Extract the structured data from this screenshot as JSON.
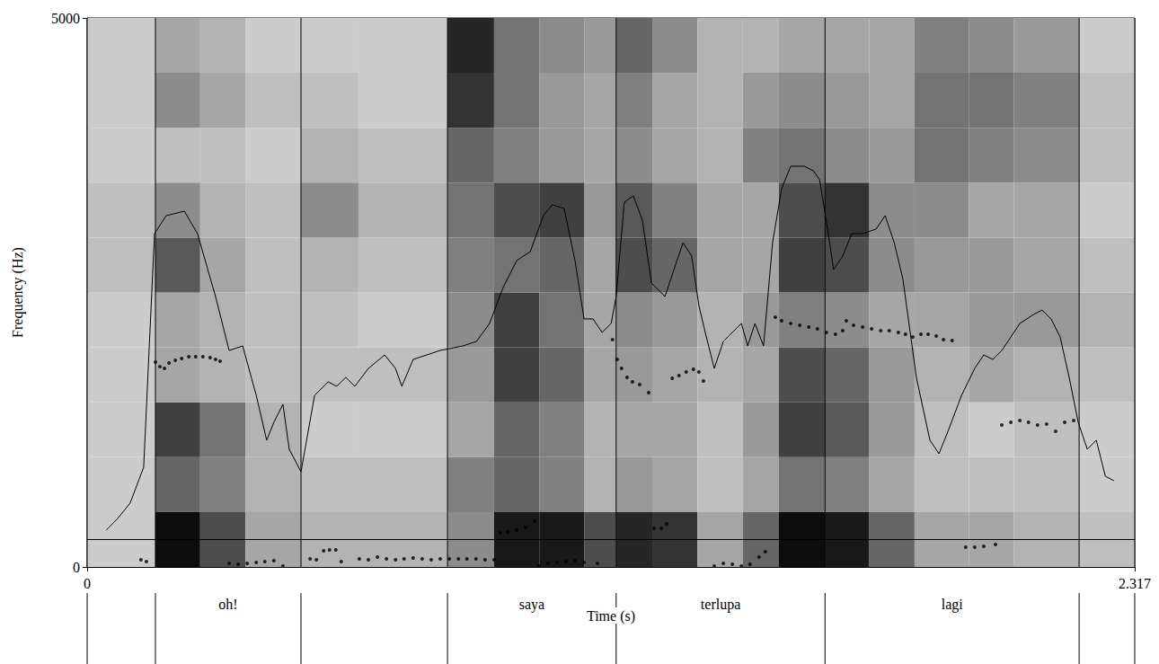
{
  "chart_data": {
    "type": "spectrogram",
    "x_label": "Time (s)",
    "y_label": "Frequency (Hz)",
    "xlim": [
      0,
      2.317
    ],
    "ylim": [
      0,
      5000
    ],
    "xticks": [
      0,
      2.317
    ],
    "yticks": [
      0,
      5000
    ],
    "grid": false,
    "color": "#000000",
    "spectrogram": {
      "time_edges": [
        0,
        0.151,
        0.25,
        0.35,
        0.473,
        0.6,
        0.797,
        0.9,
        1.0,
        1.1,
        1.17,
        1.25,
        1.35,
        1.45,
        1.53,
        1.632,
        1.73,
        1.83,
        1.95,
        2.05,
        2.194,
        2.317
      ],
      "freq_edges": [
        0,
        500,
        1000,
        1500,
        2000,
        2500,
        3000,
        3500,
        4000,
        4500,
        5000
      ],
      "darkness": [
        [
          0.2,
          0.2,
          0.2,
          0.2,
          0.2,
          0.25,
          0.25,
          0.2,
          0.2,
          0.2
        ],
        [
          0.95,
          0.6,
          0.75,
          0.35,
          0.35,
          0.65,
          0.45,
          0.25,
          0.45,
          0.35
        ],
        [
          0.7,
          0.5,
          0.55,
          0.3,
          0.3,
          0.35,
          0.3,
          0.25,
          0.35,
          0.3
        ],
        [
          0.35,
          0.3,
          0.3,
          0.25,
          0.25,
          0.25,
          0.25,
          0.2,
          0.25,
          0.2
        ],
        [
          0.3,
          0.25,
          0.2,
          0.25,
          0.25,
          0.3,
          0.45,
          0.3,
          0.25,
          0.2
        ],
        [
          0.3,
          0.25,
          0.2,
          0.25,
          0.2,
          0.25,
          0.3,
          0.25,
          0.2,
          0.2
        ],
        [
          0.45,
          0.5,
          0.35,
          0.4,
          0.45,
          0.5,
          0.55,
          0.6,
          0.8,
          0.85
        ],
        [
          0.9,
          0.6,
          0.6,
          0.75,
          0.75,
          0.55,
          0.7,
          0.5,
          0.55,
          0.55
        ],
        [
          0.9,
          0.5,
          0.5,
          0.6,
          0.55,
          0.6,
          0.75,
          0.4,
          0.4,
          0.45
        ],
        [
          0.7,
          0.3,
          0.3,
          0.35,
          0.35,
          0.35,
          0.4,
          0.35,
          0.35,
          0.4
        ],
        [
          0.85,
          0.4,
          0.35,
          0.4,
          0.45,
          0.7,
          0.65,
          0.45,
          0.5,
          0.6
        ],
        [
          0.8,
          0.35,
          0.35,
          0.35,
          0.4,
          0.6,
          0.5,
          0.35,
          0.35,
          0.45
        ],
        [
          0.35,
          0.25,
          0.25,
          0.3,
          0.3,
          0.35,
          0.35,
          0.3,
          0.3,
          0.3
        ],
        [
          0.6,
          0.35,
          0.4,
          0.35,
          0.4,
          0.35,
          0.35,
          0.5,
          0.4,
          0.3
        ],
        [
          0.95,
          0.55,
          0.75,
          0.7,
          0.5,
          0.75,
          0.7,
          0.55,
          0.45,
          0.35
        ],
        [
          0.9,
          0.5,
          0.65,
          0.6,
          0.45,
          0.7,
          0.8,
          0.45,
          0.4,
          0.35
        ],
        [
          0.6,
          0.35,
          0.4,
          0.4,
          0.35,
          0.45,
          0.45,
          0.4,
          0.35,
          0.35
        ],
        [
          0.35,
          0.25,
          0.25,
          0.3,
          0.35,
          0.4,
          0.45,
          0.55,
          0.55,
          0.5
        ],
        [
          0.35,
          0.25,
          0.2,
          0.35,
          0.4,
          0.4,
          0.35,
          0.5,
          0.55,
          0.45
        ],
        [
          0.3,
          0.25,
          0.25,
          0.3,
          0.4,
          0.35,
          0.35,
          0.45,
          0.5,
          0.4
        ],
        [
          0.25,
          0.2,
          0.2,
          0.25,
          0.3,
          0.25,
          0.2,
          0.25,
          0.25,
          0.2
        ]
      ]
    },
    "intensity_curve": {
      "x": [
        0.042,
        0.066,
        0.095,
        0.125,
        0.149,
        0.175,
        0.215,
        0.244,
        0.284,
        0.314,
        0.344,
        0.374,
        0.397,
        0.413,
        0.433,
        0.447,
        0.473,
        0.503,
        0.533,
        0.552,
        0.572,
        0.592,
        0.622,
        0.658,
        0.682,
        0.696,
        0.721,
        0.751,
        0.781,
        0.801,
        0.831,
        0.861,
        0.89,
        0.92,
        0.95,
        0.98,
        1.009,
        1.029,
        1.055,
        1.079,
        1.099,
        1.119,
        1.139,
        1.159,
        1.17,
        1.188,
        1.208,
        1.228,
        1.248,
        1.278,
        1.298,
        1.318,
        1.337,
        1.353,
        1.367,
        1.387,
        1.407,
        1.427,
        1.447,
        1.461,
        1.477,
        1.496,
        1.516,
        1.536,
        1.556,
        1.586,
        1.606,
        1.62,
        1.636,
        1.651,
        1.671,
        1.691,
        1.715,
        1.745,
        1.765,
        1.785,
        1.804,
        1.834,
        1.864,
        1.884,
        1.904,
        1.934,
        1.963,
        1.983,
        2.003,
        2.023,
        2.043,
        2.063,
        2.093,
        2.112,
        2.132,
        2.152,
        2.172,
        2.192,
        2.212,
        2.232,
        2.252,
        2.271
      ],
      "y": [
        335,
        434,
        581,
        908,
        3036,
        3200,
        3240,
        3036,
        2463,
        1972,
        2013,
        1563,
        1154,
        1317,
        1481,
        1072,
        867,
        1563,
        1686,
        1645,
        1727,
        1645,
        1808,
        1931,
        1808,
        1645,
        1890,
        1931,
        1972,
        1988,
        2013,
        2054,
        2218,
        2545,
        2790,
        2872,
        3200,
        3298,
        3265,
        2790,
        2259,
        2259,
        2136,
        2218,
        2463,
        3322,
        3380,
        3159,
        2586,
        2463,
        2709,
        2954,
        2831,
        2381,
        2136,
        1808,
        2054,
        2136,
        2218,
        2013,
        2218,
        2013,
        2954,
        3445,
        3650,
        3650,
        3609,
        3527,
        3118,
        2709,
        2831,
        3036,
        3036,
        3077,
        3200,
        2954,
        2627,
        1727,
        1154,
        1031,
        1236,
        1563,
        1808,
        1931,
        1890,
        1972,
        2095,
        2218,
        2299,
        2340,
        2259,
        2095,
        1727,
        1317,
        1072,
        1154,
        826,
        786
      ]
    },
    "pitch_points": {
      "x": [
        0.119,
        0.131,
        0.151,
        0.161,
        0.171,
        0.181,
        0.195,
        0.209,
        0.225,
        0.24,
        0.256,
        0.272,
        0.284,
        0.294,
        0.314,
        0.334,
        0.354,
        0.374,
        0.393,
        0.413,
        0.433,
        0.493,
        0.507,
        0.523,
        0.536,
        0.55,
        0.562,
        0.602,
        0.622,
        0.642,
        0.662,
        0.682,
        0.701,
        0.721,
        0.741,
        0.761,
        0.781,
        0.801,
        0.821,
        0.84,
        0.86,
        0.88,
        0.9,
        0.914,
        0.93,
        0.95,
        0.97,
        0.99,
        0.999,
        1.019,
        1.039,
        1.059,
        1.079,
        1.099,
        1.129,
        1.162,
        1.172,
        1.182,
        1.194,
        1.206,
        1.222,
        1.242,
        1.254,
        1.27,
        1.282,
        1.294,
        1.309,
        1.325,
        1.341,
        1.353,
        1.363,
        1.387,
        1.407,
        1.427,
        1.447,
        1.466,
        1.486,
        1.5,
        1.522,
        1.536,
        1.556,
        1.576,
        1.596,
        1.615,
        1.635,
        1.655,
        1.671,
        1.679,
        1.695,
        1.715,
        1.735,
        1.755,
        1.774,
        1.794,
        1.81,
        1.826,
        1.844,
        1.86,
        1.878,
        1.894,
        1.913,
        1.943,
        1.963,
        1.983,
        2.009,
        2.023,
        2.043,
        2.063,
        2.082,
        2.102,
        2.122,
        2.142,
        2.162,
        2.182
      ],
      "y": [
        65,
        49,
        1866,
        1825,
        1808,
        1857,
        1882,
        1898,
        1915,
        1915,
        1915,
        1907,
        1890,
        1874,
        33,
        25,
        33,
        41,
        49,
        57,
        8,
        74,
        65,
        147,
        155,
        155,
        49,
        74,
        65,
        90,
        74,
        65,
        74,
        82,
        74,
        65,
        74,
        74,
        74,
        74,
        74,
        65,
        65,
        311,
        319,
        335,
        360,
        417,
        8,
        33,
        41,
        49,
        57,
        41,
        33,
        2070,
        1890,
        1808,
        1727,
        1686,
        1661,
        1588,
        352,
        352,
        393,
        1718,
        1743,
        1776,
        1800,
        1776,
        1694,
        8,
        33,
        25,
        8,
        25,
        90,
        139,
        2275,
        2242,
        2218,
        2201,
        2185,
        2168,
        2136,
        2119,
        2152,
        2242,
        2201,
        2185,
        2168,
        2152,
        2152,
        2136,
        2119,
        2095,
        2119,
        2119,
        2103,
        2070,
        2062,
        180,
        180,
        188,
        205,
        1293,
        1317,
        1334,
        1317,
        1293,
        1301,
        1236,
        1317,
        1334
      ]
    },
    "reference_line": 254,
    "tier": {
      "edges": [
        0,
        0.151,
        0.473,
        0.797,
        1.17,
        1.632,
        2.194,
        2.317
      ],
      "labels": [
        null,
        "oh!",
        null,
        "saya",
        "terlupa",
        "lagi",
        null
      ]
    }
  }
}
